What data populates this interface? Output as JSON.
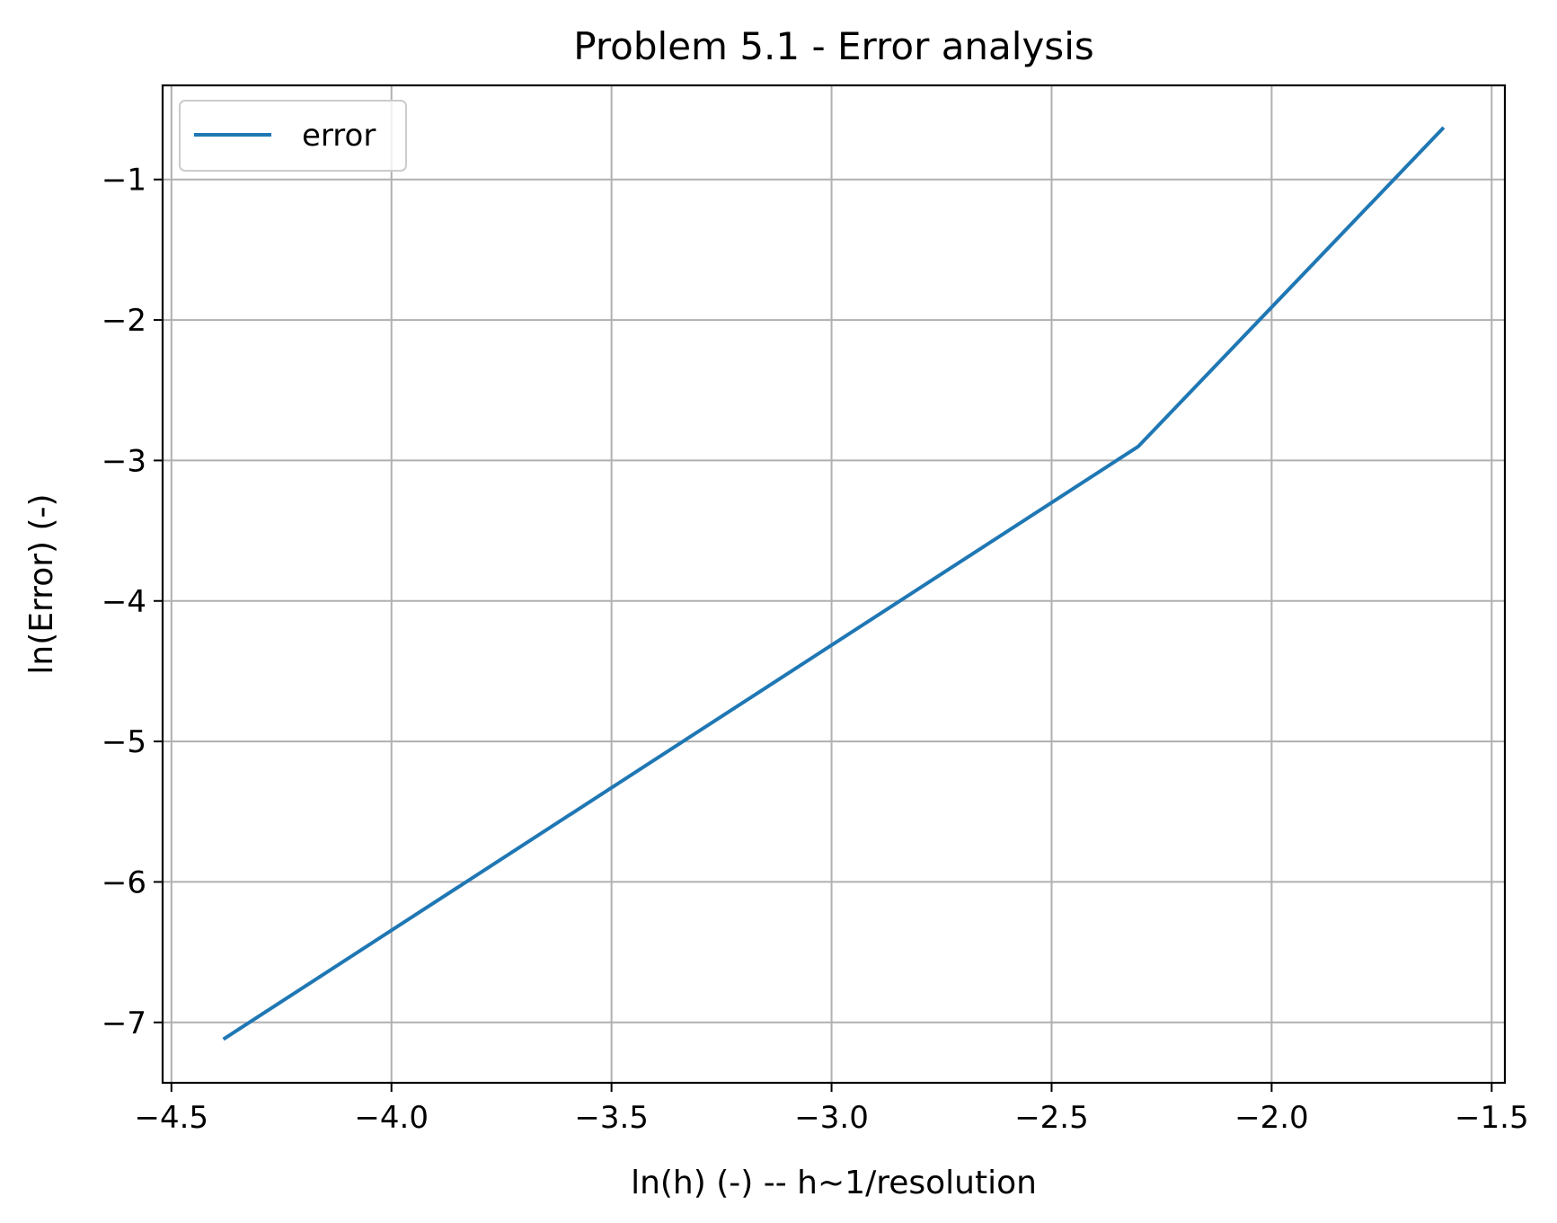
{
  "chart_data": {
    "type": "line",
    "title": "Problem 5.1 - Error analysis",
    "xlabel": "ln(h) (-) -- h~1/resolution",
    "ylabel": "ln(Error) (-)",
    "xlim": [
      -4.52,
      -1.47
    ],
    "ylim": [
      -7.43,
      -0.33
    ],
    "grid": true,
    "legend_position": "upper-left",
    "x_ticks": [
      {
        "value": -4.5,
        "label": "−4.5"
      },
      {
        "value": -4.0,
        "label": "−4.0"
      },
      {
        "value": -3.5,
        "label": "−3.5"
      },
      {
        "value": -3.0,
        "label": "−3.0"
      },
      {
        "value": -2.5,
        "label": "−2.5"
      },
      {
        "value": -2.0,
        "label": "−2.0"
      },
      {
        "value": -1.5,
        "label": "−1.5"
      }
    ],
    "y_ticks": [
      {
        "value": -1,
        "label": "−1"
      },
      {
        "value": -2,
        "label": "−2"
      },
      {
        "value": -3,
        "label": "−3"
      },
      {
        "value": -4,
        "label": "−4"
      },
      {
        "value": -5,
        "label": "−5"
      },
      {
        "value": -6,
        "label": "−6"
      },
      {
        "value": -7,
        "label": "−7"
      }
    ],
    "series": [
      {
        "name": "error",
        "color": "#1f77b4",
        "x": [
          -4.382,
          -2.303,
          -1.609
        ],
        "y": [
          -7.12,
          -2.9,
          -0.63
        ]
      }
    ]
  }
}
